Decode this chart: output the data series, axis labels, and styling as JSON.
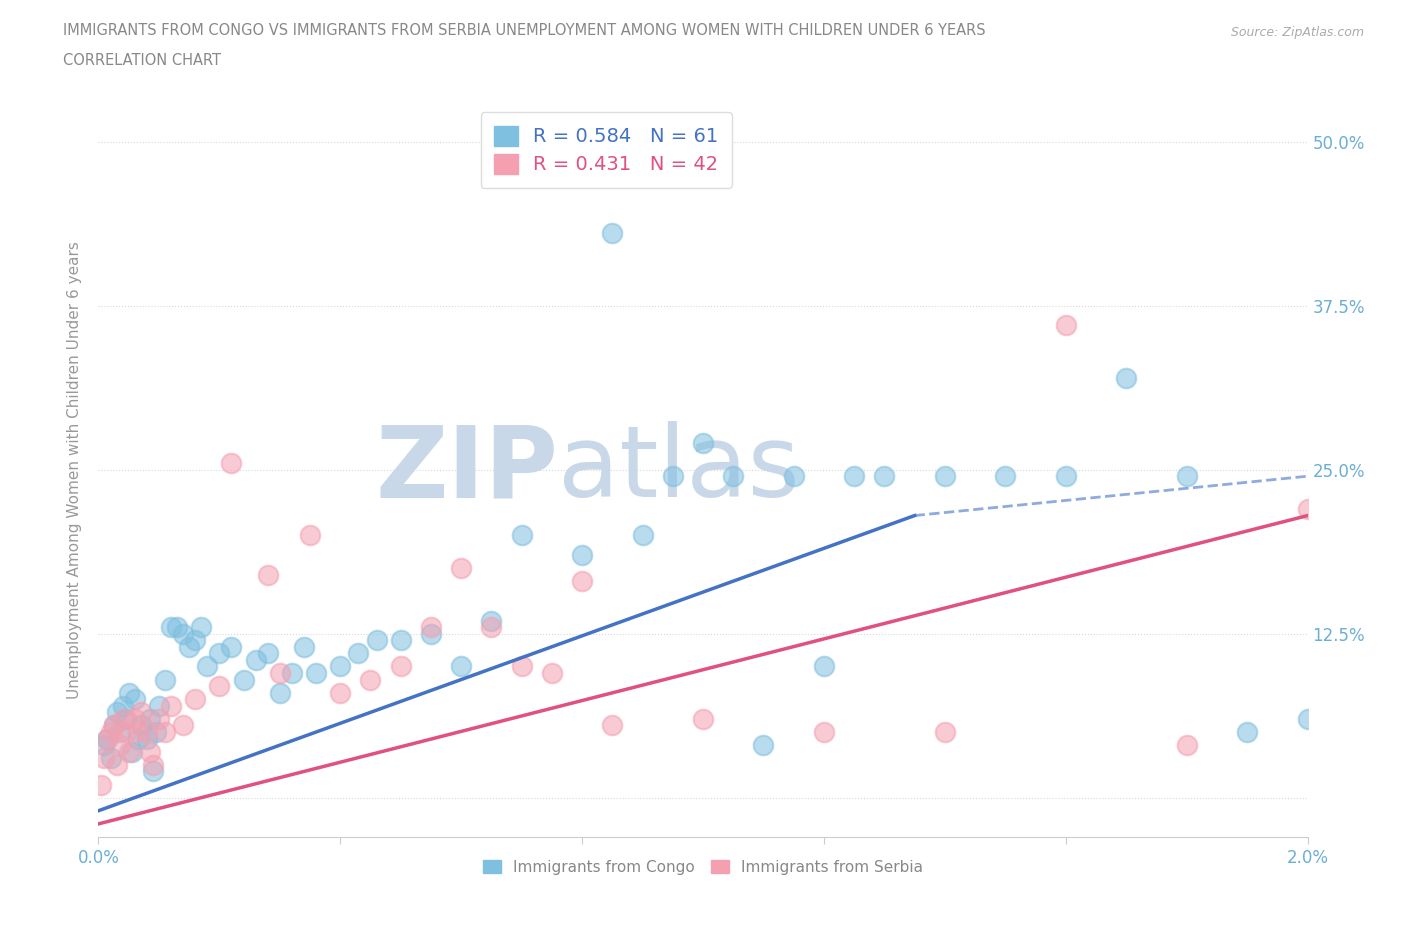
{
  "title_line1": "IMMIGRANTS FROM CONGO VS IMMIGRANTS FROM SERBIA UNEMPLOYMENT AMONG WOMEN WITH CHILDREN UNDER 6 YEARS",
  "title_line2": "CORRELATION CHART",
  "source": "Source: ZipAtlas.com",
  "ylabel": "Unemployment Among Women with Children Under 6 years",
  "xlim": [
    0.0,
    0.02
  ],
  "ylim": [
    -0.03,
    0.53
  ],
  "yticks": [
    0.0,
    0.125,
    0.25,
    0.375,
    0.5
  ],
  "ytick_labels": [
    "",
    "12.5%",
    "25.0%",
    "37.5%",
    "50.0%"
  ],
  "xticks": [
    0.0,
    0.004,
    0.008,
    0.012,
    0.016,
    0.02
  ],
  "xtick_labels": [
    "0.0%",
    "",
    "",
    "",
    "",
    "2.0%"
  ],
  "color_congo": "#7fbfdf",
  "color_serbia": "#f4a0b0",
  "color_congo_line": "#4472c4",
  "color_serbia_line": "#e05080",
  "legend_r_congo": "R = 0.584",
  "legend_n_congo": "N = 61",
  "legend_r_serbia": "R = 0.431",
  "legend_n_serbia": "N = 42",
  "watermark_zip": "ZIP",
  "watermark_atlas": "atlas",
  "congo_points": [
    [
      0.0001,
      0.04
    ],
    [
      0.00015,
      0.045
    ],
    [
      0.0002,
      0.03
    ],
    [
      0.00025,
      0.055
    ],
    [
      0.0003,
      0.065
    ],
    [
      0.00035,
      0.05
    ],
    [
      0.0004,
      0.07
    ],
    [
      0.00045,
      0.06
    ],
    [
      0.0005,
      0.08
    ],
    [
      0.00055,
      0.035
    ],
    [
      0.0006,
      0.075
    ],
    [
      0.00065,
      0.045
    ],
    [
      0.0007,
      0.055
    ],
    [
      0.0008,
      0.045
    ],
    [
      0.00085,
      0.06
    ],
    [
      0.0009,
      0.02
    ],
    [
      0.00095,
      0.05
    ],
    [
      0.001,
      0.07
    ],
    [
      0.0011,
      0.09
    ],
    [
      0.0012,
      0.13
    ],
    [
      0.0013,
      0.13
    ],
    [
      0.0014,
      0.125
    ],
    [
      0.0015,
      0.115
    ],
    [
      0.0016,
      0.12
    ],
    [
      0.0017,
      0.13
    ],
    [
      0.0018,
      0.1
    ],
    [
      0.002,
      0.11
    ],
    [
      0.0022,
      0.115
    ],
    [
      0.0024,
      0.09
    ],
    [
      0.0026,
      0.105
    ],
    [
      0.0028,
      0.11
    ],
    [
      0.003,
      0.08
    ],
    [
      0.0032,
      0.095
    ],
    [
      0.0034,
      0.115
    ],
    [
      0.0036,
      0.095
    ],
    [
      0.004,
      0.1
    ],
    [
      0.0043,
      0.11
    ],
    [
      0.0046,
      0.12
    ],
    [
      0.005,
      0.12
    ],
    [
      0.0055,
      0.125
    ],
    [
      0.006,
      0.1
    ],
    [
      0.0065,
      0.135
    ],
    [
      0.007,
      0.2
    ],
    [
      0.008,
      0.185
    ],
    [
      0.0085,
      0.43
    ],
    [
      0.009,
      0.2
    ],
    [
      0.0095,
      0.245
    ],
    [
      0.01,
      0.27
    ],
    [
      0.0105,
      0.245
    ],
    [
      0.011,
      0.04
    ],
    [
      0.0115,
      0.245
    ],
    [
      0.012,
      0.1
    ],
    [
      0.0125,
      0.245
    ],
    [
      0.013,
      0.245
    ],
    [
      0.014,
      0.245
    ],
    [
      0.015,
      0.245
    ],
    [
      0.016,
      0.245
    ],
    [
      0.017,
      0.32
    ],
    [
      0.018,
      0.245
    ],
    [
      0.019,
      0.05
    ],
    [
      0.02,
      0.06
    ]
  ],
  "serbia_points": [
    [
      5e-05,
      0.01
    ],
    [
      0.0001,
      0.03
    ],
    [
      0.00015,
      0.045
    ],
    [
      0.0002,
      0.05
    ],
    [
      0.00025,
      0.055
    ],
    [
      0.0003,
      0.025
    ],
    [
      0.00035,
      0.04
    ],
    [
      0.0004,
      0.06
    ],
    [
      0.00045,
      0.05
    ],
    [
      0.0005,
      0.035
    ],
    [
      0.0006,
      0.06
    ],
    [
      0.00065,
      0.05
    ],
    [
      0.0007,
      0.065
    ],
    [
      0.0008,
      0.05
    ],
    [
      0.00085,
      0.035
    ],
    [
      0.0009,
      0.025
    ],
    [
      0.001,
      0.06
    ],
    [
      0.0011,
      0.05
    ],
    [
      0.0012,
      0.07
    ],
    [
      0.0014,
      0.055
    ],
    [
      0.0016,
      0.075
    ],
    [
      0.002,
      0.085
    ],
    [
      0.0022,
      0.255
    ],
    [
      0.0028,
      0.17
    ],
    [
      0.003,
      0.095
    ],
    [
      0.0035,
      0.2
    ],
    [
      0.004,
      0.08
    ],
    [
      0.0045,
      0.09
    ],
    [
      0.005,
      0.1
    ],
    [
      0.0055,
      0.13
    ],
    [
      0.006,
      0.175
    ],
    [
      0.0065,
      0.13
    ],
    [
      0.007,
      0.1
    ],
    [
      0.0075,
      0.095
    ],
    [
      0.008,
      0.165
    ],
    [
      0.0085,
      0.055
    ],
    [
      0.01,
      0.06
    ],
    [
      0.012,
      0.05
    ],
    [
      0.014,
      0.05
    ],
    [
      0.016,
      0.36
    ],
    [
      0.018,
      0.04
    ],
    [
      0.02,
      0.22
    ]
  ],
  "congo_trendline_solid": [
    [
      0.0,
      -0.01
    ],
    [
      0.0135,
      0.215
    ]
  ],
  "congo_trendline_dashed": [
    [
      0.0135,
      0.215
    ],
    [
      0.02,
      0.245
    ]
  ],
  "serbia_trendline": [
    [
      0.0,
      -0.02
    ],
    [
      0.02,
      0.215
    ]
  ],
  "background_color": "#ffffff",
  "grid_color": "#d8d8d8",
  "axis_color": "#cccccc",
  "tick_color": "#6baed6",
  "watermark_color_zip": "#c8d8e8",
  "watermark_color_atlas": "#c8d8e8"
}
